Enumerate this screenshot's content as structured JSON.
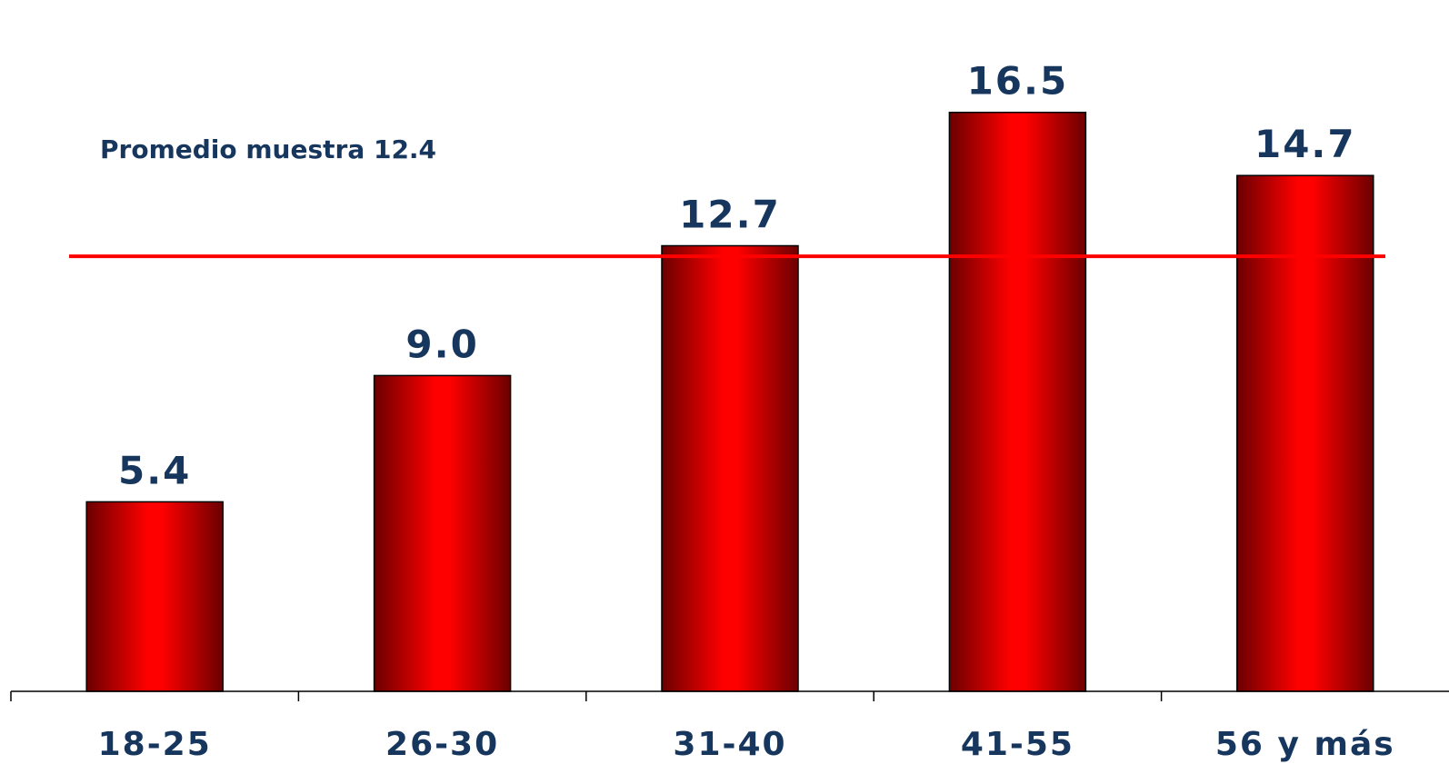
{
  "chart_data": {
    "type": "bar",
    "categories": [
      "18-25",
      "26-30",
      "31-40",
      "41-55",
      "56 y más"
    ],
    "values": [
      5.4,
      9.0,
      12.7,
      16.5,
      14.7
    ],
    "value_labels": [
      "5.4",
      "9.0",
      "12.7",
      "16.5",
      "14.7"
    ],
    "reference_line": {
      "value": 12.4,
      "label": "Promedio muestra 12.4",
      "color": "#ff0000"
    },
    "title": "",
    "xlabel": "",
    "ylabel": "",
    "ylim": [
      0,
      18.9
    ],
    "grid": false,
    "bar_color": "#ff0000",
    "bar_edge_color": "#7a0000",
    "label_color": "#17365d"
  }
}
